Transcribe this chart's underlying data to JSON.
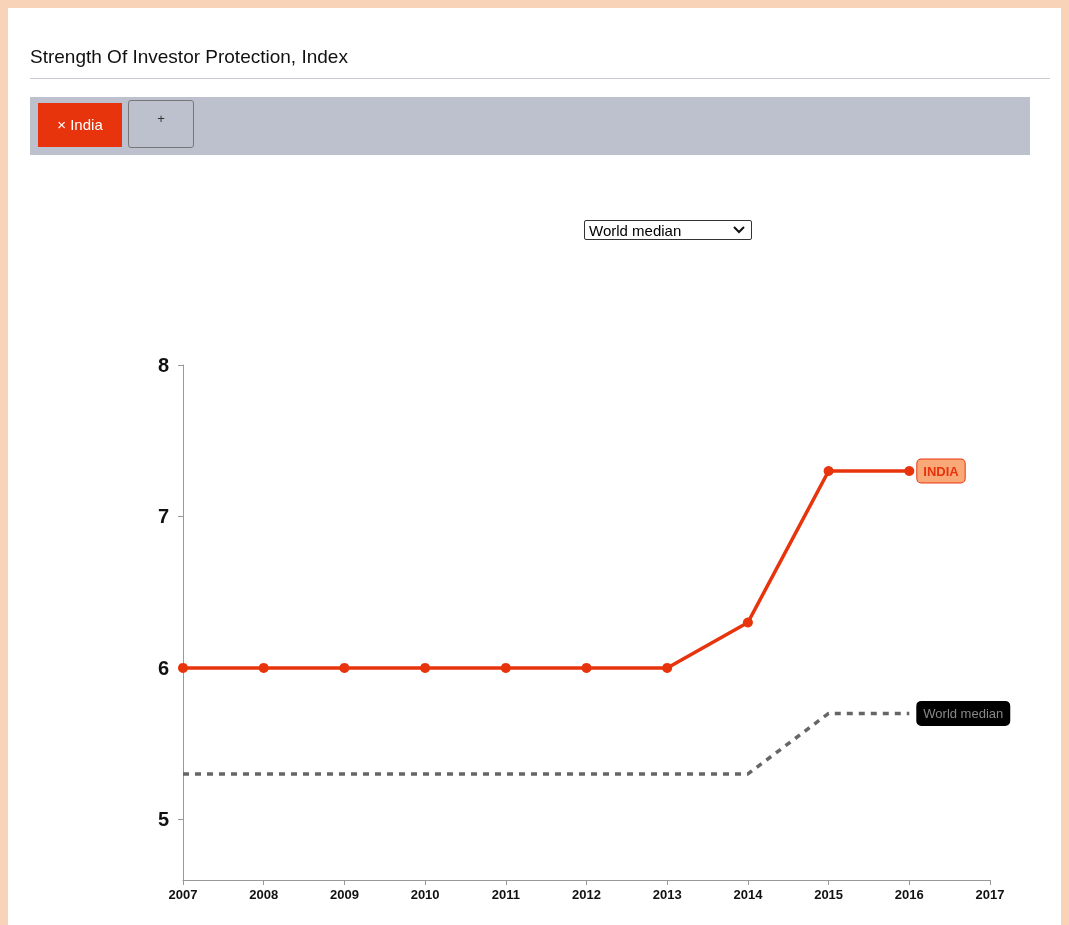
{
  "chart_data": {
    "type": "line",
    "title": "Strength Of Investor Protection, Index",
    "annotations": [
      "× India",
      "+",
      "World median"
    ],
    "x": [
      2007,
      2008,
      2009,
      2010,
      2011,
      2012,
      2013,
      2014,
      2015,
      2016
    ],
    "series": [
      {
        "name": "INDIA",
        "color": "#e8340c",
        "marker": "circle",
        "line_style": "solid",
        "values": [
          6,
          6,
          6,
          6,
          6,
          6,
          6,
          6.3,
          7.3,
          7.3
        ]
      },
      {
        "name": "World median",
        "color": "#666666",
        "marker": "none",
        "line_style": "dashed",
        "values": [
          5.3,
          5.3,
          5.3,
          5.3,
          5.3,
          5.3,
          5.3,
          5.3,
          5.7,
          5.7
        ]
      }
    ],
    "xlim": [
      2007,
      2017
    ],
    "xticks": [
      2007,
      2008,
      2009,
      2010,
      2011,
      2012,
      2013,
      2014,
      2015,
      2016,
      2017
    ],
    "ylim": [
      4.6,
      8
    ],
    "yticks": [
      5,
      6,
      7,
      8
    ],
    "grid": false,
    "legend": false
  }
}
